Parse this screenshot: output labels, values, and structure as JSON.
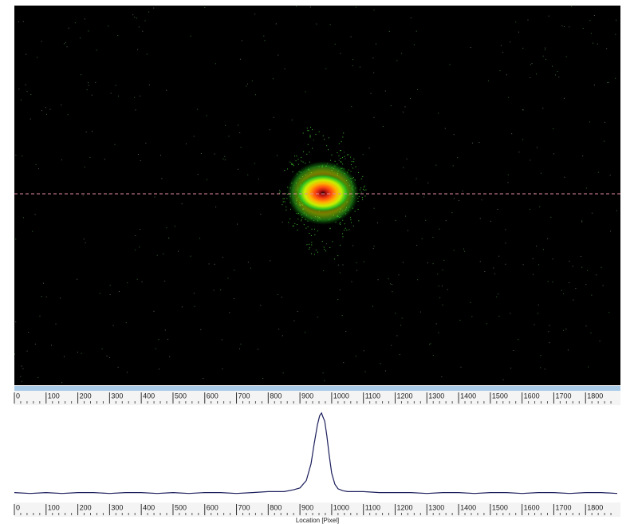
{
  "profile": {
    "x_label": "Location [Pixel]",
    "xlim": [
      0,
      1910
    ],
    "xticks": [
      0,
      100,
      200,
      300,
      400,
      500,
      600,
      700,
      800,
      900,
      1000,
      1100,
      1200,
      1300,
      1400,
      1500,
      1600,
      1700,
      1800
    ],
    "ylim": [
      0,
      100
    ],
    "x": [
      0,
      50,
      100,
      150,
      200,
      250,
      300,
      350,
      400,
      450,
      500,
      550,
      600,
      650,
      700,
      750,
      800,
      850,
      880,
      900,
      920,
      935,
      945,
      955,
      962,
      968,
      972,
      978,
      985,
      992,
      1000,
      1010,
      1020,
      1035,
      1050,
      1100,
      1150,
      1200,
      1250,
      1300,
      1350,
      1400,
      1450,
      1500,
      1550,
      1600,
      1650,
      1700,
      1750,
      1800,
      1850,
      1900
    ],
    "values": [
      9,
      8,
      9,
      8,
      9,
      9,
      8,
      9,
      9,
      8,
      9,
      8,
      9,
      9,
      8,
      9,
      10,
      10,
      12,
      14,
      22,
      40,
      62,
      82,
      92,
      95,
      91,
      86,
      70,
      50,
      30,
      18,
      13,
      11,
      10,
      10,
      9,
      9,
      9,
      8,
      9,
      9,
      8,
      9,
      9,
      8,
      9,
      9,
      8,
      9,
      9,
      8
    ],
    "color": "#1c1f5c"
  }
}
